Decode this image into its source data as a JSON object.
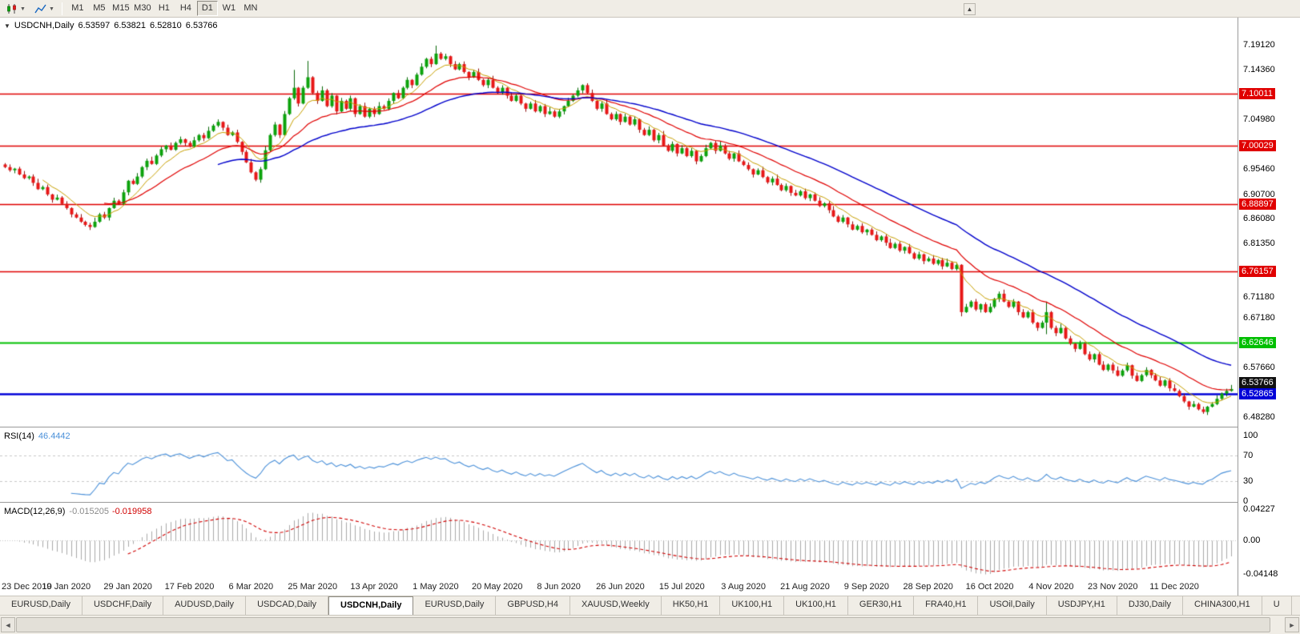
{
  "toolbar": {
    "timeframes": [
      "M1",
      "M5",
      "M15",
      "M30",
      "H1",
      "H4",
      "D1",
      "W1",
      "MN"
    ],
    "active_timeframe": "D1",
    "icons": [
      "candlestick-chart-icon",
      "line-chart-icon",
      "dropdown-caret-icon",
      "scroll-up-icon"
    ]
  },
  "chart": {
    "title": "USDCNH,Daily",
    "open": "6.53597",
    "high": "6.53821",
    "low": "6.52810",
    "close": "6.53766",
    "y_ticks": [
      "7.19120",
      "7.14360",
      "7.04980",
      "6.95460",
      "6.90700",
      "6.86080",
      "6.81350",
      "6.71180",
      "6.67180",
      "6.57660",
      "6.48280"
    ],
    "lines": [
      {
        "value": 7.10011,
        "label": "7.10011",
        "color": "#e00000",
        "width": 1.4
      },
      {
        "value": 7.00029,
        "label": "7.00029",
        "color": "#e00000",
        "width": 1.4
      },
      {
        "value": 6.88897,
        "label": "6.88897",
        "color": "#e00000",
        "width": 1.4
      },
      {
        "value": 6.76157,
        "label": "6.76157",
        "color": "#e00000",
        "width": 1.4
      },
      {
        "value": 6.62646,
        "label": "6.62646",
        "color": "#00bf00",
        "width": 2
      },
      {
        "value": 6.52865,
        "label": "6.52865",
        "color": "#0000d8",
        "width": 2.4
      }
    ],
    "current_price": {
      "value": 6.53766,
      "label": "6.53766",
      "bg": "#111111"
    },
    "x_labels": [
      "23 Dec 2019",
      "10 Jan 2020",
      "29 Jan 2020",
      "17 Feb 2020",
      "6 Mar 2020",
      "25 Mar 2020",
      "13 Apr 2020",
      "1 May 2020",
      "20 May 2020",
      "8 Jun 2020",
      "26 Jun 2020",
      "15 Jul 2020",
      "3 Aug 2020",
      "21 Aug 2020",
      "9 Sep 2020",
      "28 Sep 2020",
      "16 Oct 2020",
      "4 Nov 2020",
      "23 Nov 2020",
      "11 Dec 2020"
    ]
  },
  "rsi": {
    "label": "RSI(14)",
    "value": "46.4442",
    "axis": [
      "100",
      "70",
      "30",
      "0"
    ],
    "levels": [
      70,
      30
    ]
  },
  "macd": {
    "label": "MACD(12,26,9)",
    "value_macd": "-0.015205",
    "value_signal": "-0.019958",
    "axis": [
      "0.04227",
      "0.00",
      "-0.04148"
    ]
  },
  "tabs": {
    "items": [
      "EURUSD,Daily",
      "USDCHF,Daily",
      "AUDUSD,Daily",
      "USDCAD,Daily",
      "USDCNH,Daily",
      "EURUSD,Daily",
      "GBPUSD,H4",
      "XAUUSD,Weekly",
      "HK50,H1",
      "UK100,H1",
      "UK100,H1",
      "GER30,H1",
      "FRA40,H1",
      "USOil,Daily",
      "USDJPY,H1",
      "DJ30,Daily",
      "CHINA300,H1",
      "U"
    ],
    "active_index": 4
  },
  "colors": {
    "up": "#0ca30c",
    "up_dark": "#066806",
    "down": "#e81717",
    "down_dark": "#8f0e0e",
    "rsi_line": "#4a90d9",
    "macd_hist": "#a9a9a9",
    "macd_signal": "#d00000",
    "grid": "#c8c8c8"
  },
  "chart_data": {
    "type": "candlestick",
    "symbol": "USDCNH",
    "timeframe": "Daily",
    "title": "USDCNH,Daily",
    "ohlc_current": {
      "open": 6.53597,
      "high": 6.53821,
      "low": 6.5281,
      "close": 6.53766
    },
    "price_axis": {
      "min": 6.466,
      "max": 7.2445
    },
    "x_label_every": 13,
    "first_open": 6.965,
    "closes": [
      6.96,
      6.954,
      6.957,
      6.946,
      6.939,
      6.942,
      6.93,
      6.918,
      6.922,
      6.908,
      6.898,
      6.902,
      6.89,
      6.882,
      6.87,
      6.864,
      6.856,
      6.85,
      6.846,
      6.856,
      6.87,
      6.864,
      6.882,
      6.896,
      6.89,
      6.912,
      6.934,
      6.928,
      6.942,
      6.96,
      6.972,
      6.966,
      6.982,
      6.994,
      7.001,
      6.993,
      7.006,
      7.013,
      7.006,
      6.999,
      7.011,
      7.021,
      7.015,
      7.029,
      7.039,
      7.046,
      7.035,
      7.021,
      7.026,
      7.008,
      6.989,
      6.969,
      6.95,
      6.936,
      6.956,
      6.992,
      7.021,
      7.041,
      7.021,
      7.061,
      7.091,
      7.111,
      7.081,
      7.111,
      7.131,
      7.101,
      7.086,
      7.106,
      7.076,
      7.096,
      7.066,
      7.086,
      7.071,
      7.091,
      7.061,
      7.076,
      7.056,
      7.071,
      7.061,
      7.076,
      7.071,
      7.086,
      7.101,
      7.091,
      7.111,
      7.126,
      7.116,
      7.136,
      7.151,
      7.166,
      7.156,
      7.176,
      7.166,
      7.171,
      7.156,
      7.146,
      7.156,
      7.141,
      7.131,
      7.141,
      7.126,
      7.116,
      7.126,
      7.111,
      7.101,
      7.111,
      7.096,
      7.086,
      7.096,
      7.081,
      7.071,
      7.081,
      7.066,
      7.076,
      7.061,
      7.066,
      7.056,
      7.066,
      7.076,
      7.086,
      7.096,
      7.106,
      7.116,
      7.101,
      7.086,
      7.071,
      7.081,
      7.061,
      7.051,
      7.061,
      7.046,
      7.056,
      7.041,
      7.051,
      7.031,
      7.021,
      7.031,
      7.011,
      7.021,
      7.001,
      6.991,
      7.004,
      6.986,
      6.996,
      6.981,
      6.991,
      6.971,
      6.981,
      6.996,
      7.006,
      6.991,
      7.001,
      6.986,
      6.976,
      6.986,
      6.971,
      6.964,
      6.956,
      6.946,
      6.954,
      6.941,
      6.931,
      6.938,
      6.926,
      6.916,
      6.924,
      6.911,
      6.906,
      6.914,
      6.901,
      6.908,
      6.896,
      6.886,
      6.891,
      6.878,
      6.866,
      6.856,
      6.864,
      6.851,
      6.841,
      6.848,
      6.836,
      6.841,
      6.831,
      6.821,
      6.828,
      6.816,
      6.806,
      6.814,
      6.801,
      6.808,
      6.796,
      6.786,
      6.794,
      6.781,
      6.786,
      6.776,
      6.783,
      6.771,
      6.778,
      6.766,
      6.774,
      6.684,
      6.694,
      6.704,
      6.689,
      6.699,
      6.684,
      6.694,
      6.709,
      6.719,
      6.704,
      6.694,
      6.704,
      6.684,
      6.674,
      6.684,
      6.664,
      6.654,
      6.664,
      6.684,
      6.654,
      6.644,
      6.654,
      6.634,
      6.624,
      6.614,
      6.624,
      6.604,
      6.594,
      6.604,
      6.584,
      6.574,
      6.584,
      6.573,
      6.563,
      6.573,
      6.583,
      6.563,
      6.553,
      6.564,
      6.574,
      6.564,
      6.554,
      6.544,
      6.554,
      6.539,
      6.534,
      6.524,
      6.514,
      6.504,
      6.509,
      6.499,
      6.494,
      6.504,
      6.509,
      6.519,
      6.529,
      6.534,
      6.53766
    ],
    "wick_pattern": [
      0.0045,
      0.0085,
      0.0025,
      0.006,
      0.011,
      0.0035,
      0.007,
      0.013,
      0.005,
      0.008,
      0.002,
      0.0095
    ],
    "overrides": [
      {
        "i": 61,
        "h": 7.145
      },
      {
        "i": 64,
        "h": 7.162
      },
      {
        "i": 91,
        "h": 7.1912
      },
      {
        "i": 202,
        "l": 6.676
      },
      {
        "i": 220,
        "h": 6.704,
        "l": 6.642
      },
      {
        "i": 253,
        "l": 6.4905
      }
    ],
    "ma": [
      {
        "period": 8,
        "color": "#c8a000",
        "width": 1
      },
      {
        "period": 21,
        "color": "#e00000",
        "width": 1.2
      },
      {
        "period": 45,
        "color": "#0000cc",
        "width": 1.4
      }
    ],
    "levels": {
      "resistance": [
        7.10011,
        7.00029,
        6.88897,
        6.76157
      ],
      "support_green": 6.62646,
      "support_blue": 6.52865
    },
    "rsi": {
      "period": 14,
      "current": 46.4442,
      "axis": [
        100,
        70,
        30,
        0
      ]
    },
    "macd": {
      "fast": 12,
      "slow": 26,
      "signal": 9,
      "current_macd": -0.015205,
      "current_signal": -0.019958,
      "axis": [
        0.04227,
        0.0,
        -0.04148
      ]
    }
  }
}
